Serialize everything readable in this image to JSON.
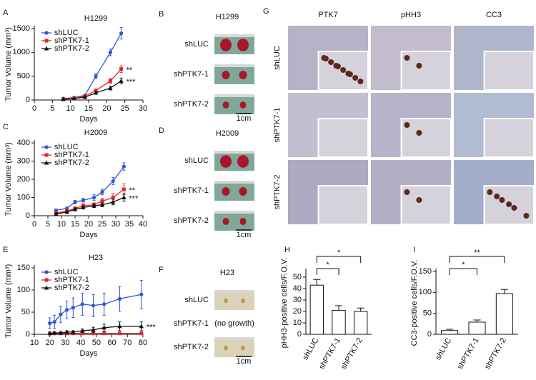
{
  "chart_data": [
    {
      "type": "line",
      "panel_label": "A",
      "title": "H1299",
      "xlabel": "Days",
      "ylabel": "Tumor Volume (mm³)",
      "x": [
        8,
        11,
        14,
        17,
        21,
        24
      ],
      "xlim": [
        0,
        30
      ],
      "xticks": [
        0,
        5,
        10,
        15,
        20,
        25,
        30
      ],
      "ylim": [
        0,
        1500
      ],
      "yticks": [
        0,
        500,
        1000,
        1500
      ],
      "series": [
        {
          "name": "shLUC",
          "color": "#2f55d4",
          "marker": "circle",
          "values": [
            30,
            50,
            100,
            500,
            1000,
            1400
          ],
          "errors": [
            5,
            10,
            20,
            50,
            70,
            120
          ]
        },
        {
          "name": "shPTK7-1",
          "color": "#e3262b",
          "marker": "square",
          "values": [
            20,
            40,
            80,
            200,
            400,
            650
          ],
          "errors": [
            5,
            8,
            15,
            30,
            50,
            70
          ],
          "annotation": "**"
        },
        {
          "name": "shPTK7-2",
          "color": "#111111",
          "marker": "triangle",
          "values": [
            15,
            30,
            60,
            150,
            250,
            400
          ],
          "errors": [
            5,
            8,
            12,
            25,
            40,
            60
          ],
          "annotation": "***"
        }
      ]
    },
    {
      "type": "line",
      "panel_label": "C",
      "title": "H2009",
      "xlabel": "Days",
      "ylabel": "Tumor Volume (mm³)",
      "x": [
        8,
        12,
        15,
        18,
        22,
        25,
        29,
        33
      ],
      "xlim": [
        0,
        40
      ],
      "xticks": [
        0,
        5,
        10,
        15,
        20,
        25,
        30,
        35,
        40
      ],
      "ylim": [
        0,
        400
      ],
      "yticks": [
        0,
        100,
        200,
        300,
        400
      ],
      "series": [
        {
          "name": "shLUC",
          "color": "#2f55d4",
          "marker": "circle",
          "values": [
            30,
            40,
            75,
            85,
            100,
            130,
            190,
            270
          ],
          "errors": [
            5,
            8,
            10,
            10,
            15,
            15,
            20,
            20
          ]
        },
        {
          "name": "shPTK7-1",
          "color": "#e3262b",
          "marker": "square",
          "values": [
            15,
            25,
            40,
            55,
            60,
            80,
            100,
            145
          ],
          "errors": [
            5,
            5,
            8,
            10,
            10,
            15,
            20,
            30
          ],
          "annotation": "**"
        },
        {
          "name": "shPTK7-2",
          "color": "#111111",
          "marker": "triangle",
          "values": [
            10,
            20,
            35,
            45,
            55,
            60,
            75,
            100
          ],
          "errors": [
            5,
            5,
            8,
            8,
            10,
            10,
            15,
            20
          ],
          "annotation": "***"
        }
      ]
    },
    {
      "type": "line",
      "panel_label": "E",
      "title": "H23",
      "xlabel": "Days",
      "ylabel": "Tumor Volume (mm³)",
      "x": [
        20,
        23,
        27,
        31,
        35,
        41,
        48,
        55,
        65,
        79
      ],
      "xlim": [
        10,
        80
      ],
      "xticks": [
        10,
        20,
        30,
        40,
        50,
        60,
        70,
        80
      ],
      "ylim": [
        0,
        150
      ],
      "yticks": [
        0,
        50,
        100,
        150
      ],
      "series": [
        {
          "name": "shLUC",
          "color": "#2f55d4",
          "marker": "circle",
          "values": [
            25,
            28,
            45,
            55,
            60,
            68,
            65,
            68,
            80,
            90
          ],
          "errors": [
            12,
            15,
            18,
            20,
            22,
            25,
            25,
            25,
            28,
            32
          ]
        },
        {
          "name": "shPTK7-1",
          "color": "#e3262b",
          "marker": "square",
          "values": [
            2,
            2,
            2,
            2,
            2,
            2,
            2,
            2,
            2,
            2
          ],
          "errors": [
            1,
            1,
            1,
            1,
            1,
            1,
            1,
            1,
            1,
            1
          ]
        },
        {
          "name": "shPTK7-2",
          "color": "#111111",
          "marker": "triangle",
          "values": [
            2,
            3,
            3,
            5,
            5,
            8,
            10,
            15,
            18,
            18
          ],
          "errors": [
            1,
            2,
            2,
            3,
            3,
            4,
            6,
            8,
            10,
            10
          ],
          "annotation": "***"
        }
      ]
    },
    {
      "type": "bar",
      "panel_label": "H",
      "ylabel": "pHH3-positive cells/F.O.V.",
      "categories": [
        "shLUC",
        "shPTK7-1",
        "shPTK7-2"
      ],
      "values": [
        43,
        21,
        20
      ],
      "errors": [
        5,
        4,
        3
      ],
      "significance": [
        null,
        "*",
        "*"
      ],
      "color": "#ffffff",
      "ylim": [
        0,
        55
      ],
      "yticks": [
        0,
        10,
        20,
        30,
        40,
        50
      ]
    },
    {
      "type": "bar",
      "panel_label": "I",
      "ylabel": "CC3-positive cells/F.O.V.",
      "categories": [
        "shLUC",
        "shPTK7-1",
        "shPTK7-2"
      ],
      "values": [
        9,
        29,
        97
      ],
      "errors": [
        3,
        5,
        10
      ],
      "significance": [
        null,
        "*",
        "**"
      ],
      "color": "#ffffff",
      "ylim": [
        0,
        150
      ],
      "yticks": [
        0,
        50,
        100,
        150
      ]
    }
  ],
  "photo_panels": [
    {
      "panel_label": "B",
      "title": "H1299",
      "rows": [
        "shLUC",
        "shPTK7-1",
        "shPTK7-2"
      ],
      "scale": "1cm"
    },
    {
      "panel_label": "D",
      "title": "H2009",
      "rows": [
        "shLUC",
        "shPTK7-1",
        "shPTK7-2"
      ],
      "scale": "1cm"
    },
    {
      "panel_label": "F",
      "title": "H23",
      "rows": [
        "shLUC",
        "shPTK7-1",
        "shPTK7-2"
      ],
      "scale": "1cm",
      "note": "(no growth)"
    }
  ],
  "ihc_panel": {
    "panel_label": "G",
    "columns": [
      "PTK7",
      "pHH3",
      "CC3"
    ],
    "rows": [
      "shLUC",
      "shPTK7-1",
      "shPTK7-2"
    ]
  }
}
